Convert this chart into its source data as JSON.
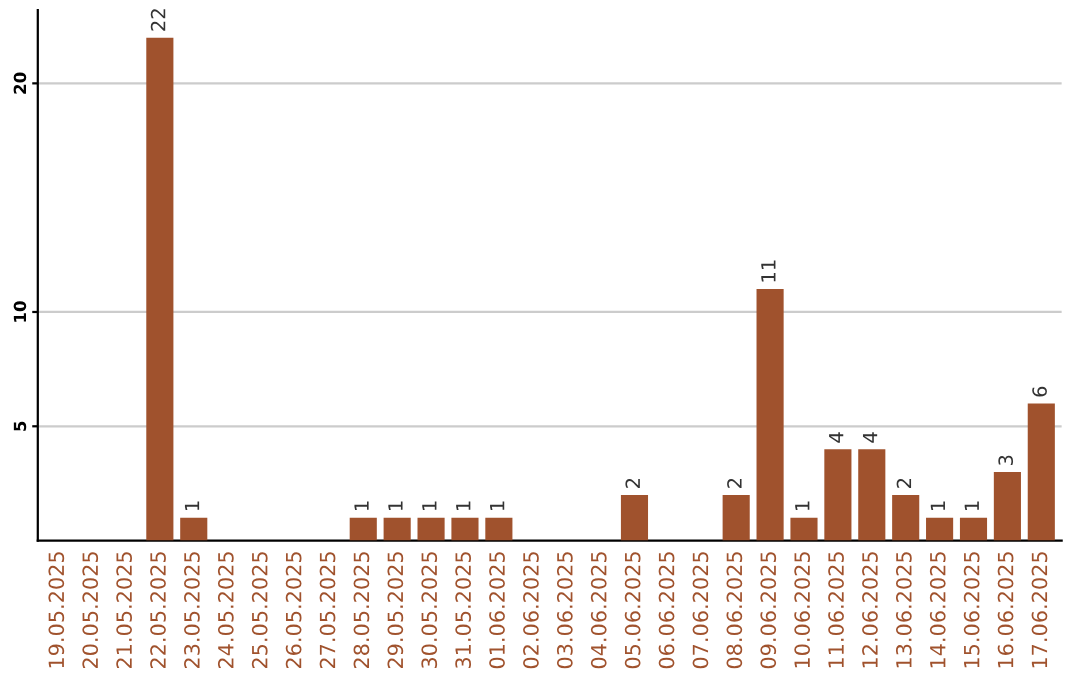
{
  "chart_data": {
    "type": "bar",
    "categories": [
      "19.05.2025",
      "20.05.2025",
      "21.05.2025",
      "22.05.2025",
      "23.05.2025",
      "24.05.2025",
      "25.05.2025",
      "26.05.2025",
      "27.05.2025",
      "28.05.2025",
      "29.05.2025",
      "30.05.2025",
      "31.05.2025",
      "01.06.2025",
      "02.06.2025",
      "03.06.2025",
      "04.06.2025",
      "05.06.2025",
      "06.06.2025",
      "07.06.2025",
      "08.06.2025",
      "09.06.2025",
      "10.06.2025",
      "11.06.2025",
      "12.06.2025",
      "13.06.2025",
      "14.06.2025",
      "15.06.2025",
      "16.06.2025",
      "17.06.2025"
    ],
    "values": [
      0,
      0,
      0,
      22,
      1,
      0,
      0,
      0,
      0,
      1,
      1,
      1,
      1,
      1,
      0,
      0,
      0,
      2,
      0,
      0,
      2,
      11,
      1,
      4,
      4,
      2,
      1,
      1,
      3,
      6
    ],
    "value_labels": [
      null,
      null,
      null,
      "22",
      "1",
      null,
      null,
      null,
      null,
      "1",
      "1",
      "1",
      "1",
      "1",
      null,
      null,
      null,
      "2",
      null,
      null,
      "2",
      "11",
      "1",
      "4",
      "4",
      "2",
      "1",
      "1",
      "3",
      "6"
    ],
    "color": "#a0522d",
    "ylim": [
      0,
      23.2
    ],
    "yticks": [
      5,
      10,
      20
    ],
    "grid": "y"
  }
}
